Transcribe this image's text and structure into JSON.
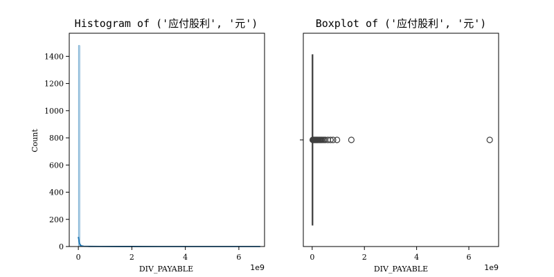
{
  "chart_data": [
    {
      "type": "histogram",
      "title": "Histogram of ('应付股利', '元')",
      "xlabel": "DIV_PAYABLE",
      "ylabel": "Count",
      "x_offset_label": "1e9",
      "xlim": [
        -0.34,
        6.96
      ],
      "ylim": [
        0,
        1570
      ],
      "xticks": [
        0,
        2,
        4,
        6
      ],
      "yticks": [
        0,
        200,
        400,
        600,
        800,
        1000,
        1200,
        1400
      ],
      "bar_color": "#1f77b4",
      "bins": {
        "start": 0,
        "width": 0.054,
        "counts": [
          1480,
          10,
          4,
          2,
          1,
          1,
          1,
          0,
          0,
          0,
          0,
          0,
          1
        ]
      },
      "kde": {
        "x": [
          0,
          0.005,
          0.01,
          0.02,
          0.05,
          0.1,
          0.2,
          0.4,
          0.8,
          1.5,
          2,
          3,
          4,
          5,
          6,
          6.8
        ],
        "y": [
          60,
          70,
          62,
          48,
          20,
          6,
          2,
          1,
          0.5,
          0.3,
          0.2,
          0.1,
          0.05,
          0.02,
          0.01,
          0.01
        ]
      }
    },
    {
      "type": "boxplot",
      "title": "Boxplot of ('应付股利', '元')",
      "xlabel": "DIV_PAYABLE",
      "x_offset_label": "1e9",
      "xlim": [
        -0.34,
        7.14
      ],
      "xticks": [
        0,
        2,
        4,
        6
      ],
      "box_color": "#1f77b4",
      "stats": {
        "q1": 0,
        "median": 0.002,
        "q3": 0.006,
        "whisker_low": 0,
        "whisker_high": 0.015
      },
      "outliers": [
        0.02,
        0.04,
        0.06,
        0.08,
        0.1,
        0.12,
        0.14,
        0.16,
        0.18,
        0.2,
        0.22,
        0.25,
        0.28,
        0.3,
        0.33,
        0.36,
        0.4,
        0.45,
        0.5,
        0.6,
        0.7,
        0.8,
        0.95,
        1.5,
        6.8
      ]
    }
  ]
}
